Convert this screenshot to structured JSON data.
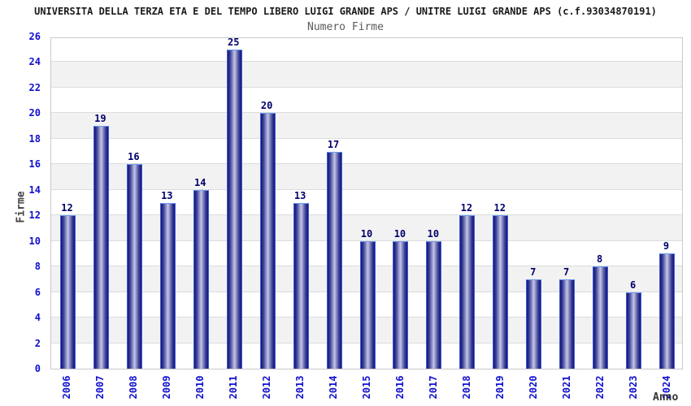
{
  "header": {
    "title": "UNIVERSITA DELLA TERZA ETA E DEL TEMPO LIBERO LUIGI GRANDE APS / UNITRE LUIGI GRANDE APS (c.f.93034870191)",
    "subtitle": "Numero Firme"
  },
  "chart_data": {
    "type": "bar",
    "title": "Numero Firme",
    "xlabel": "Anno",
    "ylabel": "Firme",
    "categories": [
      "2006",
      "2007",
      "2008",
      "2009",
      "2010",
      "2011",
      "2012",
      "2013",
      "2014",
      "2015",
      "2016",
      "2017",
      "2018",
      "2019",
      "2020",
      "2021",
      "2022",
      "2023",
      "2024"
    ],
    "values": [
      12,
      19,
      16,
      13,
      14,
      25,
      20,
      13,
      17,
      10,
      10,
      10,
      12,
      12,
      7,
      7,
      8,
      6,
      9
    ],
    "ylim": [
      0,
      26
    ],
    "ytick_step": 2,
    "grid": true,
    "legend": "none",
    "colors": {
      "tick_label": "#1010d0",
      "value_label": "#00006b",
      "bar_edge": "#3f5fd4",
      "bar_dark": "#14147a",
      "bar_light": "#c3c7e6",
      "bar_top": "#6d9cef",
      "band_gray": "#f2f2f2",
      "gridline": "#dcdcdc",
      "plot_border": "#c9c9c9",
      "axis_title": "#444444",
      "title_color": "#1a1a1a",
      "subtitle_color": "#5a5a5a"
    }
  }
}
